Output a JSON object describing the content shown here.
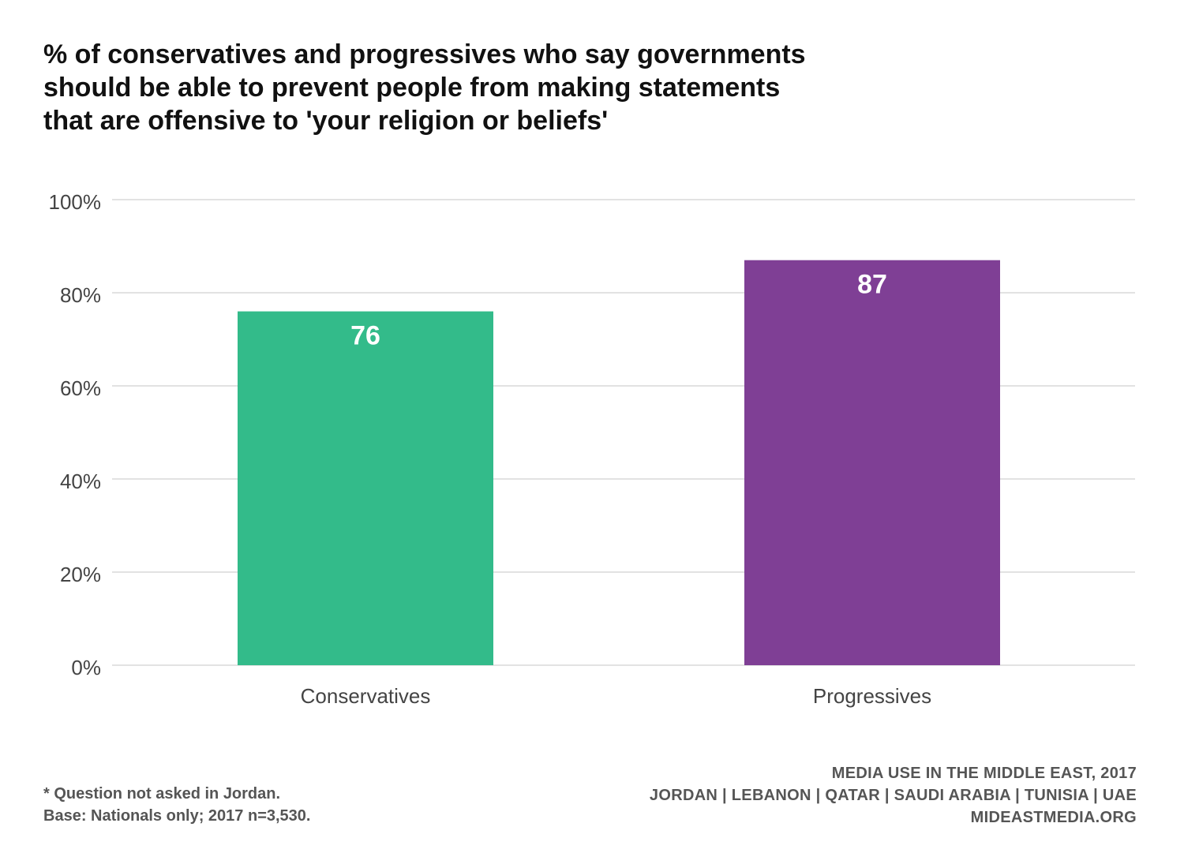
{
  "chart_data": {
    "type": "bar",
    "title_lines": [
      "% of conservatives and progressives who say governments",
      "should be able to prevent people from making statements",
      "that are offensive to 'your religion or beliefs'"
    ],
    "categories": [
      "Conservatives",
      "Progressives"
    ],
    "values": [
      76,
      87
    ],
    "data_labels": [
      "76",
      "87"
    ],
    "colors": [
      "#33bb8a",
      "#7f3f95"
    ],
    "ylim": [
      0,
      100
    ],
    "yticks": [
      0,
      20,
      40,
      60,
      80,
      100
    ],
    "ytick_labels": [
      "0%",
      "20%",
      "40%",
      "60%",
      "80%",
      "100%"
    ],
    "xlabel": "",
    "ylabel": "",
    "grid": true
  },
  "footnotes": [
    "* Question not asked in Jordan.",
    "Base: Nationals only; 2017 n=3,530."
  ],
  "source_lines": [
    "MEDIA USE IN THE MIDDLE EAST, 2017",
    "JORDAN | LEBANON | QATAR | SAUDI ARABIA | TUNISIA | UAE",
    "MIDEASTMEDIA.ORG"
  ]
}
